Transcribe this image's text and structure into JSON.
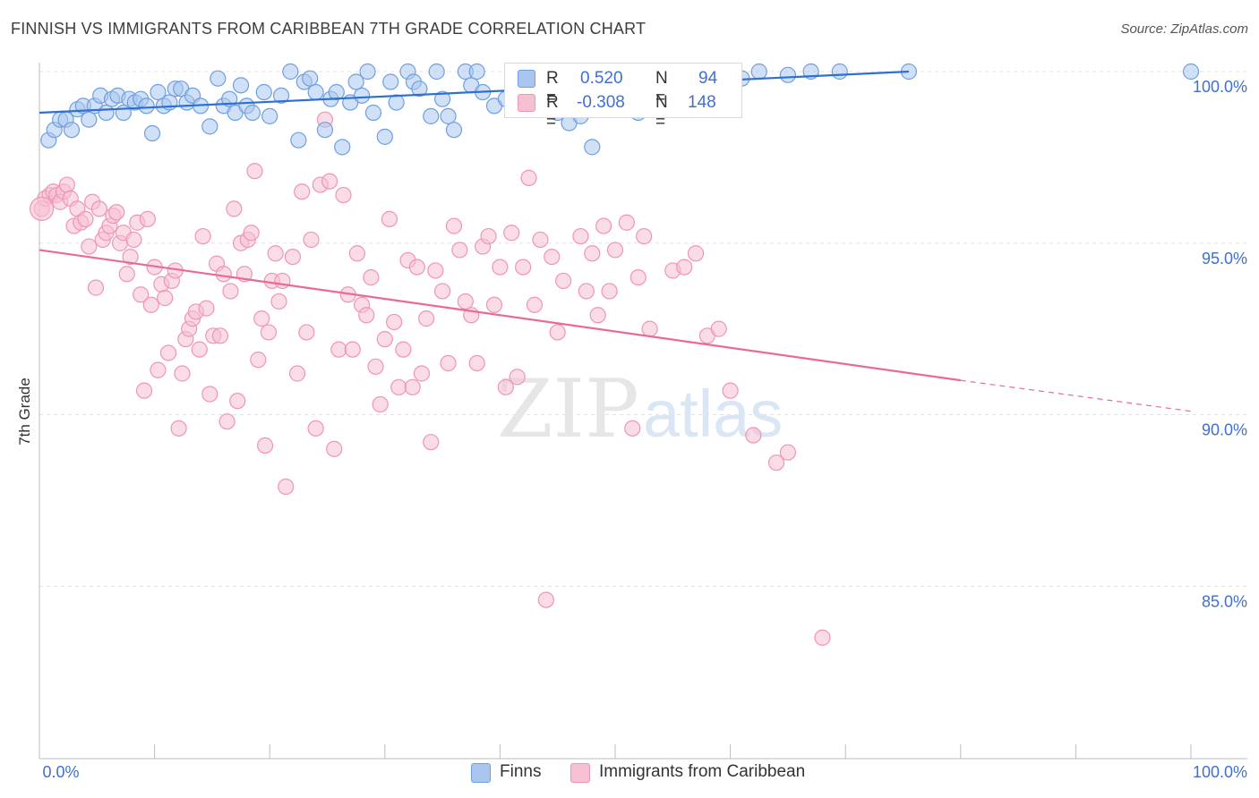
{
  "title": "FINNISH VS IMMIGRANTS FROM CARIBBEAN 7TH GRADE CORRELATION CHART",
  "source": "Source: ZipAtlas.com",
  "watermark": {
    "zip": "ZIP",
    "atlas": "atlas"
  },
  "legend": {
    "series1": {
      "r_label": "R =",
      "r_value": "0.520",
      "n_label": "N =",
      "n_value": "94"
    },
    "series2": {
      "r_label": "R =",
      "r_value": "-0.308",
      "n_label": "N =",
      "n_value": "148"
    }
  },
  "bottom_legend": {
    "series1": "Finns",
    "series2": "Immigrants from Caribbean"
  },
  "colors": {
    "blue_fill": "#a9c6ef",
    "blue_stroke": "#6f9fdf",
    "blue_line": "#2e6fd1",
    "pink_fill": "#f6c0d2",
    "pink_stroke": "#ef95b3",
    "pink_line": "#e8699a",
    "axis_label": "#3f6fd1",
    "grid": "#e2e2e2"
  },
  "chart_data": {
    "type": "scatter",
    "title": "FINNISH VS IMMIGRANTS FROM CARIBBEAN 7TH GRADE CORRELATION CHART",
    "xlabel": "",
    "ylabel": "7th Grade",
    "xlim": [
      0,
      100
    ],
    "ylim": [
      80.4,
      100.5
    ],
    "x_tick_labels": [
      "0.0%",
      "100.0%"
    ],
    "y_ticks": [
      100,
      95,
      90,
      85
    ],
    "y_tick_labels": [
      "100.0%",
      "95.0%",
      "90.0%",
      "85.0%"
    ],
    "grid": true,
    "series": [
      {
        "name": "Finns",
        "r": 0.52,
        "n": 94,
        "trend": {
          "x": [
            0,
            75.5
          ],
          "y": [
            98.8,
            100.0
          ]
        },
        "points": [
          [
            0.8,
            98.0
          ],
          [
            1.3,
            98.3
          ],
          [
            1.8,
            98.6
          ],
          [
            2.3,
            98.6
          ],
          [
            2.8,
            98.3
          ],
          [
            3.3,
            98.9
          ],
          [
            3.8,
            99.0
          ],
          [
            4.3,
            98.6
          ],
          [
            4.8,
            99.0
          ],
          [
            5.3,
            99.3
          ],
          [
            5.8,
            98.8
          ],
          [
            6.3,
            99.2
          ],
          [
            6.8,
            99.3
          ],
          [
            7.3,
            98.8
          ],
          [
            7.8,
            99.2
          ],
          [
            8.3,
            99.1
          ],
          [
            8.8,
            99.2
          ],
          [
            9.3,
            99.0
          ],
          [
            9.8,
            98.2
          ],
          [
            10.3,
            99.4
          ],
          [
            10.8,
            99.0
          ],
          [
            11.3,
            99.1
          ],
          [
            11.8,
            99.5
          ],
          [
            12.3,
            99.5
          ],
          [
            12.8,
            99.1
          ],
          [
            13.3,
            99.3
          ],
          [
            14.0,
            99.0
          ],
          [
            14.8,
            98.4
          ],
          [
            15.5,
            99.8
          ],
          [
            16.0,
            99.0
          ],
          [
            16.5,
            99.2
          ],
          [
            17.0,
            98.8
          ],
          [
            17.5,
            99.6
          ],
          [
            18.0,
            99.0
          ],
          [
            18.5,
            98.8
          ],
          [
            19.5,
            99.4
          ],
          [
            20.0,
            98.7
          ],
          [
            21.0,
            99.3
          ],
          [
            21.8,
            100.0
          ],
          [
            22.5,
            98.0
          ],
          [
            23.0,
            99.7
          ],
          [
            23.5,
            99.8
          ],
          [
            24.0,
            99.4
          ],
          [
            24.8,
            98.3
          ],
          [
            25.3,
            99.2
          ],
          [
            25.8,
            99.4
          ],
          [
            26.3,
            97.8
          ],
          [
            27.0,
            99.1
          ],
          [
            27.5,
            99.7
          ],
          [
            28.0,
            99.3
          ],
          [
            28.5,
            100.0
          ],
          [
            29.0,
            98.8
          ],
          [
            30.0,
            98.1
          ],
          [
            30.5,
            99.7
          ],
          [
            31.0,
            99.1
          ],
          [
            32.0,
            100.0
          ],
          [
            32.5,
            99.7
          ],
          [
            33.0,
            99.5
          ],
          [
            34.0,
            98.7
          ],
          [
            34.5,
            100.0
          ],
          [
            35.0,
            99.2
          ],
          [
            35.5,
            98.7
          ],
          [
            36.0,
            98.3
          ],
          [
            37.0,
            100.0
          ],
          [
            37.5,
            99.6
          ],
          [
            38.0,
            100.0
          ],
          [
            38.5,
            99.4
          ],
          [
            39.5,
            99.0
          ],
          [
            40.5,
            99.2
          ],
          [
            41.5,
            100.0
          ],
          [
            42.5,
            99.7
          ],
          [
            44.0,
            99.2
          ],
          [
            45.0,
            98.8
          ],
          [
            46.0,
            98.5
          ],
          [
            47.0,
            98.7
          ],
          [
            48.0,
            97.8
          ],
          [
            49.0,
            99.1
          ],
          [
            50.0,
            100.0
          ],
          [
            51.0,
            99.8
          ],
          [
            52.0,
            98.8
          ],
          [
            53.0,
            100.0
          ],
          [
            54.0,
            99.9
          ],
          [
            55.0,
            100.0
          ],
          [
            56.0,
            99.8
          ],
          [
            57.0,
            99.9
          ],
          [
            58.5,
            100.0
          ],
          [
            59.5,
            99.5
          ],
          [
            61.0,
            99.8
          ],
          [
            62.5,
            100.0
          ],
          [
            65.0,
            99.9
          ],
          [
            67.0,
            100.0
          ],
          [
            69.5,
            100.0
          ],
          [
            75.5,
            100.0
          ],
          [
            100.0,
            100.0
          ]
        ]
      },
      {
        "name": "Immigrants from Caribbean",
        "r": -0.308,
        "n": 148,
        "trend": {
          "x": [
            0,
            80
          ],
          "y": [
            94.8,
            91.0
          ]
        },
        "trend_dashed": {
          "x": [
            80,
            100
          ],
          "y": [
            91.0,
            90.1
          ]
        },
        "points": [
          [
            0.2,
            96.0
          ],
          [
            0.5,
            96.3
          ],
          [
            0.9,
            96.4
          ],
          [
            1.2,
            96.5
          ],
          [
            1.5,
            96.4
          ],
          [
            1.8,
            96.2
          ],
          [
            2.1,
            96.5
          ],
          [
            2.4,
            96.7
          ],
          [
            2.7,
            96.3
          ],
          [
            3.0,
            95.5
          ],
          [
            3.3,
            96.0
          ],
          [
            3.6,
            95.6
          ],
          [
            4.0,
            95.7
          ],
          [
            4.3,
            94.9
          ],
          [
            4.6,
            96.2
          ],
          [
            4.9,
            93.7
          ],
          [
            5.2,
            96.0
          ],
          [
            5.5,
            95.1
          ],
          [
            5.8,
            95.3
          ],
          [
            6.1,
            95.5
          ],
          [
            6.4,
            95.8
          ],
          [
            6.7,
            95.9
          ],
          [
            7.0,
            95.0
          ],
          [
            7.3,
            95.3
          ],
          [
            7.6,
            94.1
          ],
          [
            7.9,
            94.6
          ],
          [
            8.2,
            95.1
          ],
          [
            8.5,
            95.6
          ],
          [
            8.8,
            93.5
          ],
          [
            9.1,
            90.7
          ],
          [
            9.4,
            95.7
          ],
          [
            9.7,
            93.2
          ],
          [
            10.0,
            94.3
          ],
          [
            10.3,
            91.3
          ],
          [
            10.6,
            93.8
          ],
          [
            10.9,
            93.4
          ],
          [
            11.2,
            91.8
          ],
          [
            11.5,
            93.9
          ],
          [
            11.8,
            94.2
          ],
          [
            12.1,
            89.6
          ],
          [
            12.4,
            91.2
          ],
          [
            12.7,
            92.2
          ],
          [
            13.0,
            92.5
          ],
          [
            13.3,
            92.8
          ],
          [
            13.6,
            93.0
          ],
          [
            13.9,
            91.9
          ],
          [
            14.2,
            95.2
          ],
          [
            14.5,
            93.1
          ],
          [
            14.8,
            90.6
          ],
          [
            15.1,
            92.3
          ],
          [
            15.4,
            94.4
          ],
          [
            15.7,
            92.3
          ],
          [
            16.0,
            94.1
          ],
          [
            16.3,
            89.8
          ],
          [
            16.6,
            93.6
          ],
          [
            16.9,
            96.0
          ],
          [
            17.2,
            90.4
          ],
          [
            17.5,
            95.0
          ],
          [
            17.8,
            94.1
          ],
          [
            18.1,
            95.1
          ],
          [
            18.4,
            95.3
          ],
          [
            18.7,
            97.1
          ],
          [
            19.0,
            91.6
          ],
          [
            19.3,
            92.8
          ],
          [
            19.6,
            89.1
          ],
          [
            19.9,
            92.4
          ],
          [
            20.2,
            93.9
          ],
          [
            20.5,
            94.7
          ],
          [
            20.8,
            93.3
          ],
          [
            21.1,
            93.9
          ],
          [
            21.4,
            87.9
          ],
          [
            22.0,
            94.6
          ],
          [
            22.4,
            91.2
          ],
          [
            22.8,
            96.5
          ],
          [
            23.2,
            92.4
          ],
          [
            23.6,
            95.1
          ],
          [
            24.0,
            89.6
          ],
          [
            24.4,
            96.7
          ],
          [
            24.8,
            98.6
          ],
          [
            25.2,
            96.8
          ],
          [
            25.6,
            89.0
          ],
          [
            26.0,
            91.9
          ],
          [
            26.4,
            96.4
          ],
          [
            26.8,
            93.5
          ],
          [
            27.2,
            91.9
          ],
          [
            27.6,
            94.7
          ],
          [
            28.0,
            93.2
          ],
          [
            28.4,
            92.9
          ],
          [
            28.8,
            94.0
          ],
          [
            29.2,
            91.4
          ],
          [
            29.6,
            90.3
          ],
          [
            30.0,
            92.2
          ],
          [
            30.4,
            95.7
          ],
          [
            30.8,
            92.7
          ],
          [
            31.2,
            90.8
          ],
          [
            31.6,
            91.9
          ],
          [
            32.0,
            94.5
          ],
          [
            32.4,
            90.8
          ],
          [
            32.8,
            94.3
          ],
          [
            33.2,
            91.2
          ],
          [
            33.6,
            92.8
          ],
          [
            34.0,
            89.2
          ],
          [
            34.4,
            94.2
          ],
          [
            35.0,
            93.6
          ],
          [
            35.5,
            91.5
          ],
          [
            36.0,
            95.5
          ],
          [
            36.5,
            94.8
          ],
          [
            37.0,
            93.3
          ],
          [
            37.5,
            92.9
          ],
          [
            38.0,
            91.5
          ],
          [
            38.5,
            94.9
          ],
          [
            39.0,
            95.2
          ],
          [
            39.5,
            93.2
          ],
          [
            40.0,
            94.3
          ],
          [
            40.5,
            90.8
          ],
          [
            41.0,
            95.3
          ],
          [
            41.5,
            91.1
          ],
          [
            42.0,
            94.3
          ],
          [
            42.5,
            96.9
          ],
          [
            43.0,
            93.2
          ],
          [
            43.5,
            95.1
          ],
          [
            44.0,
            84.6
          ],
          [
            44.5,
            94.6
          ],
          [
            45.0,
            92.4
          ],
          [
            45.5,
            93.9
          ],
          [
            46.0,
            98.9
          ],
          [
            47.0,
            95.2
          ],
          [
            47.5,
            93.6
          ],
          [
            48.0,
            94.7
          ],
          [
            48.5,
            92.9
          ],
          [
            49.0,
            95.5
          ],
          [
            49.5,
            93.6
          ],
          [
            50.0,
            94.8
          ],
          [
            51.0,
            95.6
          ],
          [
            51.5,
            89.6
          ],
          [
            52.0,
            94.0
          ],
          [
            52.5,
            95.2
          ],
          [
            53.0,
            92.5
          ],
          [
            55.0,
            94.2
          ],
          [
            56.0,
            94.3
          ],
          [
            57.0,
            94.7
          ],
          [
            58.0,
            92.3
          ],
          [
            59.0,
            92.5
          ],
          [
            60.0,
            90.7
          ],
          [
            62.0,
            89.4
          ],
          [
            64.0,
            88.6
          ],
          [
            65.0,
            88.9
          ],
          [
            68.0,
            83.5
          ]
        ]
      }
    ]
  }
}
